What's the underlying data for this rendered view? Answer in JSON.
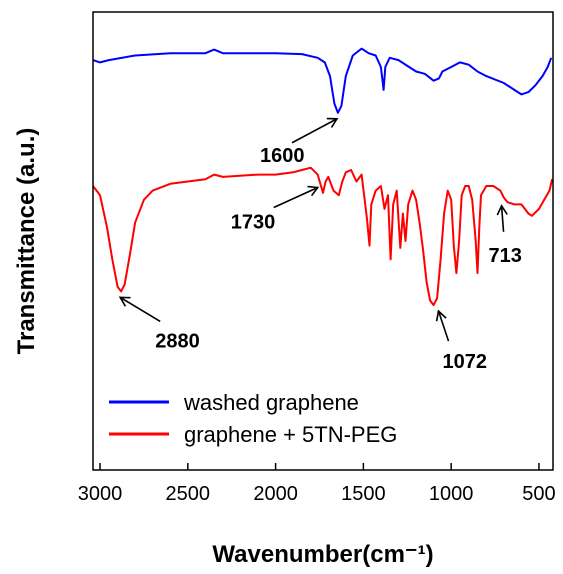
{
  "chart_data": {
    "type": "line",
    "xlabel": "Wavenumber(cm⁻¹)",
    "ylabel": "Transmittance (a.u.)",
    "xlim": [
      3040,
      420
    ],
    "ylim": [
      0,
      10
    ],
    "x_reversed": true,
    "xticks": [
      "3000",
      "2500",
      "2000",
      "1500",
      "1000",
      "500"
    ],
    "xtick_values": [
      3000,
      2500,
      2000,
      1500,
      1000,
      500
    ],
    "show_y_ticks": false,
    "grid": false,
    "legend_position": "bottom-left",
    "series": [
      {
        "name": "washed graphene",
        "color": "#0000ff",
        "points": [
          [
            3040,
            8.95
          ],
          [
            3000,
            8.9
          ],
          [
            2950,
            8.95
          ],
          [
            2800,
            9.05
          ],
          [
            2600,
            9.1
          ],
          [
            2400,
            9.1
          ],
          [
            2350,
            9.18
          ],
          [
            2300,
            9.1
          ],
          [
            2000,
            9.1
          ],
          [
            1850,
            9.08
          ],
          [
            1760,
            9.0
          ],
          [
            1720,
            8.9
          ],
          [
            1690,
            8.6
          ],
          [
            1665,
            8.0
          ],
          [
            1645,
            7.8
          ],
          [
            1625,
            7.95
          ],
          [
            1600,
            8.6
          ],
          [
            1560,
            9.05
          ],
          [
            1510,
            9.2
          ],
          [
            1470,
            9.1
          ],
          [
            1430,
            9.05
          ],
          [
            1400,
            8.8
          ],
          [
            1385,
            8.3
          ],
          [
            1375,
            8.8
          ],
          [
            1350,
            9.0
          ],
          [
            1300,
            8.95
          ],
          [
            1200,
            8.7
          ],
          [
            1150,
            8.65
          ],
          [
            1100,
            8.5
          ],
          [
            1070,
            8.55
          ],
          [
            1050,
            8.7
          ],
          [
            1000,
            8.8
          ],
          [
            950,
            8.9
          ],
          [
            900,
            8.85
          ],
          [
            850,
            8.7
          ],
          [
            800,
            8.6
          ],
          [
            700,
            8.45
          ],
          [
            640,
            8.3
          ],
          [
            600,
            8.2
          ],
          [
            560,
            8.25
          ],
          [
            520,
            8.4
          ],
          [
            480,
            8.6
          ],
          [
            450,
            8.8
          ],
          [
            430,
            9.0
          ]
        ]
      },
      {
        "name": "graphene + 5TN-PEG",
        "color": "#ff0000",
        "points": [
          [
            3040,
            6.2
          ],
          [
            3000,
            6.0
          ],
          [
            2960,
            5.3
          ],
          [
            2930,
            4.6
          ],
          [
            2900,
            4.0
          ],
          [
            2880,
            3.9
          ],
          [
            2860,
            4.05
          ],
          [
            2830,
            4.7
          ],
          [
            2800,
            5.4
          ],
          [
            2750,
            5.9
          ],
          [
            2700,
            6.1
          ],
          [
            2600,
            6.25
          ],
          [
            2500,
            6.3
          ],
          [
            2400,
            6.35
          ],
          [
            2350,
            6.45
          ],
          [
            2300,
            6.4
          ],
          [
            2100,
            6.45
          ],
          [
            2000,
            6.45
          ],
          [
            1900,
            6.5
          ],
          [
            1850,
            6.55
          ],
          [
            1800,
            6.6
          ],
          [
            1760,
            6.45
          ],
          [
            1730,
            6.05
          ],
          [
            1715,
            6.3
          ],
          [
            1700,
            6.4
          ],
          [
            1670,
            6.1
          ],
          [
            1640,
            6.0
          ],
          [
            1620,
            6.3
          ],
          [
            1600,
            6.5
          ],
          [
            1570,
            6.55
          ],
          [
            1540,
            6.3
          ],
          [
            1510,
            6.45
          ],
          [
            1480,
            5.5
          ],
          [
            1465,
            4.9
          ],
          [
            1455,
            5.8
          ],
          [
            1430,
            6.1
          ],
          [
            1400,
            6.2
          ],
          [
            1380,
            5.7
          ],
          [
            1360,
            6.0
          ],
          [
            1345,
            4.6
          ],
          [
            1330,
            5.8
          ],
          [
            1310,
            6.1
          ],
          [
            1290,
            4.85
          ],
          [
            1275,
            5.6
          ],
          [
            1260,
            5.0
          ],
          [
            1245,
            5.8
          ],
          [
            1220,
            6.1
          ],
          [
            1200,
            5.9
          ],
          [
            1180,
            5.4
          ],
          [
            1160,
            4.8
          ],
          [
            1140,
            4.1
          ],
          [
            1120,
            3.7
          ],
          [
            1100,
            3.6
          ],
          [
            1080,
            3.75
          ],
          [
            1060,
            4.6
          ],
          [
            1040,
            5.6
          ],
          [
            1020,
            6.1
          ],
          [
            1000,
            5.9
          ],
          [
            985,
            4.9
          ],
          [
            970,
            4.3
          ],
          [
            955,
            5.0
          ],
          [
            940,
            6.0
          ],
          [
            920,
            6.2
          ],
          [
            900,
            6.2
          ],
          [
            880,
            5.9
          ],
          [
            860,
            5.0
          ],
          [
            850,
            4.3
          ],
          [
            840,
            5.3
          ],
          [
            830,
            6.0
          ],
          [
            800,
            6.2
          ],
          [
            760,
            6.2
          ],
          [
            720,
            6.1
          ],
          [
            700,
            5.95
          ],
          [
            680,
            5.85
          ],
          [
            640,
            5.8
          ],
          [
            600,
            5.8
          ],
          [
            560,
            5.6
          ],
          [
            540,
            5.55
          ],
          [
            500,
            5.7
          ],
          [
            470,
            5.9
          ],
          [
            440,
            6.1
          ],
          [
            425,
            6.35
          ]
        ]
      }
    ],
    "annotations": [
      {
        "text": "1600",
        "x": 1650,
        "y": 7.8
      },
      {
        "text": "1730",
        "x": 1760,
        "y": 6.3
      },
      {
        "text": "2880",
        "x": 2885,
        "y": 3.9
      },
      {
        "text": "1072",
        "x": 1072,
        "y": 3.6
      },
      {
        "text": "713",
        "x": 713,
        "y": 5.9
      }
    ]
  }
}
